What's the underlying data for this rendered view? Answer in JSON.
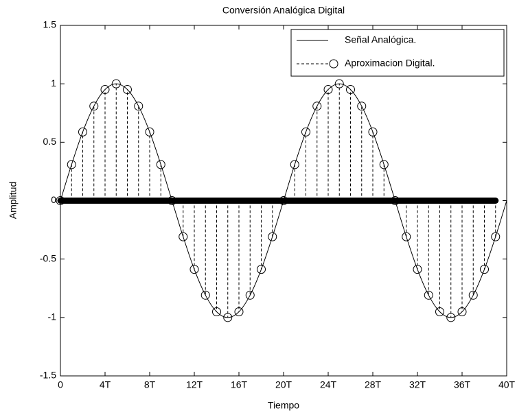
{
  "chart_data": {
    "type": "line-stem",
    "title": "Conversión Analógica Digital",
    "xlabel": "Tiempo",
    "ylabel": "Amplitud",
    "xlim": [
      0,
      40
    ],
    "ylim": [
      -1.5,
      1.5
    ],
    "xticks": [
      0,
      {
        "value": 4,
        "label": "4T"
      },
      {
        "value": 8,
        "label": "8T"
      },
      {
        "value": 12,
        "label": "12T"
      },
      {
        "value": 16,
        "label": "16T"
      },
      {
        "value": 20,
        "label": "20T"
      },
      {
        "value": 24,
        "label": "24T"
      },
      {
        "value": 28,
        "label": "28T"
      },
      {
        "value": 32,
        "label": "32T"
      },
      {
        "value": 36,
        "label": "36T"
      },
      {
        "value": 40,
        "label": "40T"
      }
    ],
    "yticks": [
      -1.5,
      -1,
      -0.5,
      0,
      0.5,
      1,
      1.5
    ],
    "legend": "northeast",
    "series": [
      {
        "name": "Señal Analógica.",
        "color": "#000000",
        "style": "solid",
        "x": [
          0,
          1,
          2,
          3,
          4,
          5,
          6,
          7,
          8,
          9,
          10,
          11,
          12,
          13,
          14,
          15,
          16,
          17,
          18,
          19,
          20,
          21,
          22,
          23,
          24,
          25,
          26,
          27,
          28,
          29,
          30,
          31,
          32,
          33,
          34,
          35,
          36,
          37,
          38,
          39,
          40
        ],
        "values": [
          0,
          0.309,
          0.588,
          0.809,
          0.951,
          1,
          0.951,
          0.809,
          0.588,
          0.309,
          0,
          -0.309,
          -0.588,
          -0.809,
          -0.951,
          -1,
          -0.951,
          -0.809,
          -0.588,
          -0.309,
          0,
          0.309,
          0.588,
          0.809,
          0.951,
          1,
          0.951,
          0.809,
          0.588,
          0.309,
          0,
          -0.309,
          -0.588,
          -0.809,
          -0.951,
          -1,
          -0.951,
          -0.809,
          -0.588,
          -0.309,
          0
        ]
      },
      {
        "name": "Aproximacion Digital.",
        "color": "#000000",
        "style": "stem",
        "x": [
          0,
          1,
          2,
          3,
          4,
          5,
          6,
          7,
          8,
          9,
          10,
          11,
          12,
          13,
          14,
          15,
          16,
          17,
          18,
          19,
          20,
          21,
          22,
          23,
          24,
          25,
          26,
          27,
          28,
          29,
          30,
          31,
          32,
          33,
          34,
          35,
          36,
          37,
          38,
          39
        ],
        "values": [
          0,
          0.309,
          0.588,
          0.809,
          0.951,
          1,
          0.951,
          0.809,
          0.588,
          0.309,
          0,
          -0.309,
          -0.588,
          -0.809,
          -0.951,
          -1,
          -0.951,
          -0.809,
          -0.588,
          -0.309,
          0,
          0.309,
          0.588,
          0.809,
          0.951,
          1,
          0.951,
          0.809,
          0.588,
          0.309,
          0,
          -0.309,
          -0.588,
          -0.809,
          -0.951,
          -1,
          -0.951,
          -0.809,
          -0.588,
          -0.309
        ]
      }
    ]
  }
}
